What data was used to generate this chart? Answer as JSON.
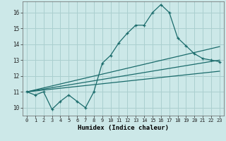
{
  "title": "",
  "xlabel": "Humidex (Indice chaleur)",
  "bg_color": "#cce8e8",
  "grid_color": "#aacfcf",
  "line_color": "#1a6b6b",
  "xlim": [
    -0.5,
    23.5
  ],
  "ylim": [
    9.5,
    16.7
  ],
  "yticks": [
    10,
    11,
    12,
    13,
    14,
    15,
    16
  ],
  "xticks": [
    0,
    1,
    2,
    3,
    4,
    5,
    6,
    7,
    8,
    9,
    10,
    11,
    12,
    13,
    14,
    15,
    16,
    17,
    18,
    19,
    20,
    21,
    22,
    23
  ],
  "line1_x": [
    0,
    1,
    2,
    3,
    4,
    5,
    6,
    7,
    8,
    9,
    10,
    11,
    12,
    13,
    14,
    15,
    16,
    17,
    18,
    19,
    20,
    21,
    22,
    23
  ],
  "line1_y": [
    11.0,
    10.8,
    11.0,
    9.9,
    10.4,
    10.8,
    10.4,
    10.0,
    11.0,
    12.8,
    13.3,
    14.1,
    14.7,
    15.2,
    15.2,
    16.0,
    16.5,
    16.0,
    14.4,
    13.9,
    13.4,
    13.1,
    13.0,
    12.9
  ],
  "line2_x": [
    0,
    23
  ],
  "line2_y": [
    11.0,
    13.85
  ],
  "line3_x": [
    0,
    23
  ],
  "line3_y": [
    11.0,
    13.0
  ],
  "line4_x": [
    0,
    23
  ],
  "line4_y": [
    11.0,
    12.3
  ]
}
